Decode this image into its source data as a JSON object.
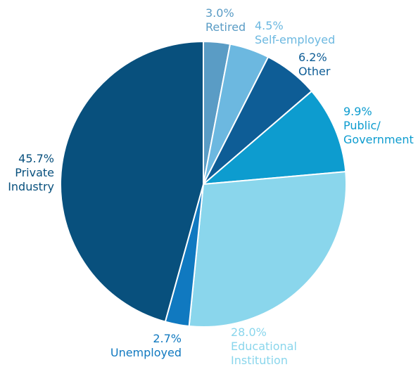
{
  "chart_data": {
    "type": "pie",
    "start_angle_deg": 0,
    "direction": "clockwise",
    "slices": [
      {
        "value": 3.0,
        "value_label": "3.0%",
        "label": [
          "Retired"
        ],
        "color": "#5a9cc5",
        "label_color": "#5a9cc5"
      },
      {
        "value": 4.5,
        "value_label": "4.5%",
        "label": [
          "Self-employed"
        ],
        "color": "#6cb8e0",
        "label_color": "#6cb8e0"
      },
      {
        "value": 6.2,
        "value_label": "6.2%",
        "label": [
          "Other"
        ],
        "color": "#0e5d96",
        "label_color": "#0e5d96"
      },
      {
        "value": 9.9,
        "value_label": "9.9%",
        "label": [
          "Public/",
          "Government"
        ],
        "color": "#0d9ccf",
        "label_color": "#0d9ccf"
      },
      {
        "value": 28.0,
        "value_label": "28.0%",
        "label": [
          "Educational",
          "Institution"
        ],
        "color": "#8ad6ec",
        "label_color": "#8ad6ec"
      },
      {
        "value": 2.7,
        "value_label": "2.7%",
        "label": [
          "Unemployed"
        ],
        "color": "#1079c0",
        "label_color": "#1079c0"
      },
      {
        "value": 45.7,
        "value_label": "45.7%",
        "label": [
          "Private",
          "Industry"
        ],
        "color": "#08507d",
        "label_color": "#08507d"
      }
    ]
  }
}
